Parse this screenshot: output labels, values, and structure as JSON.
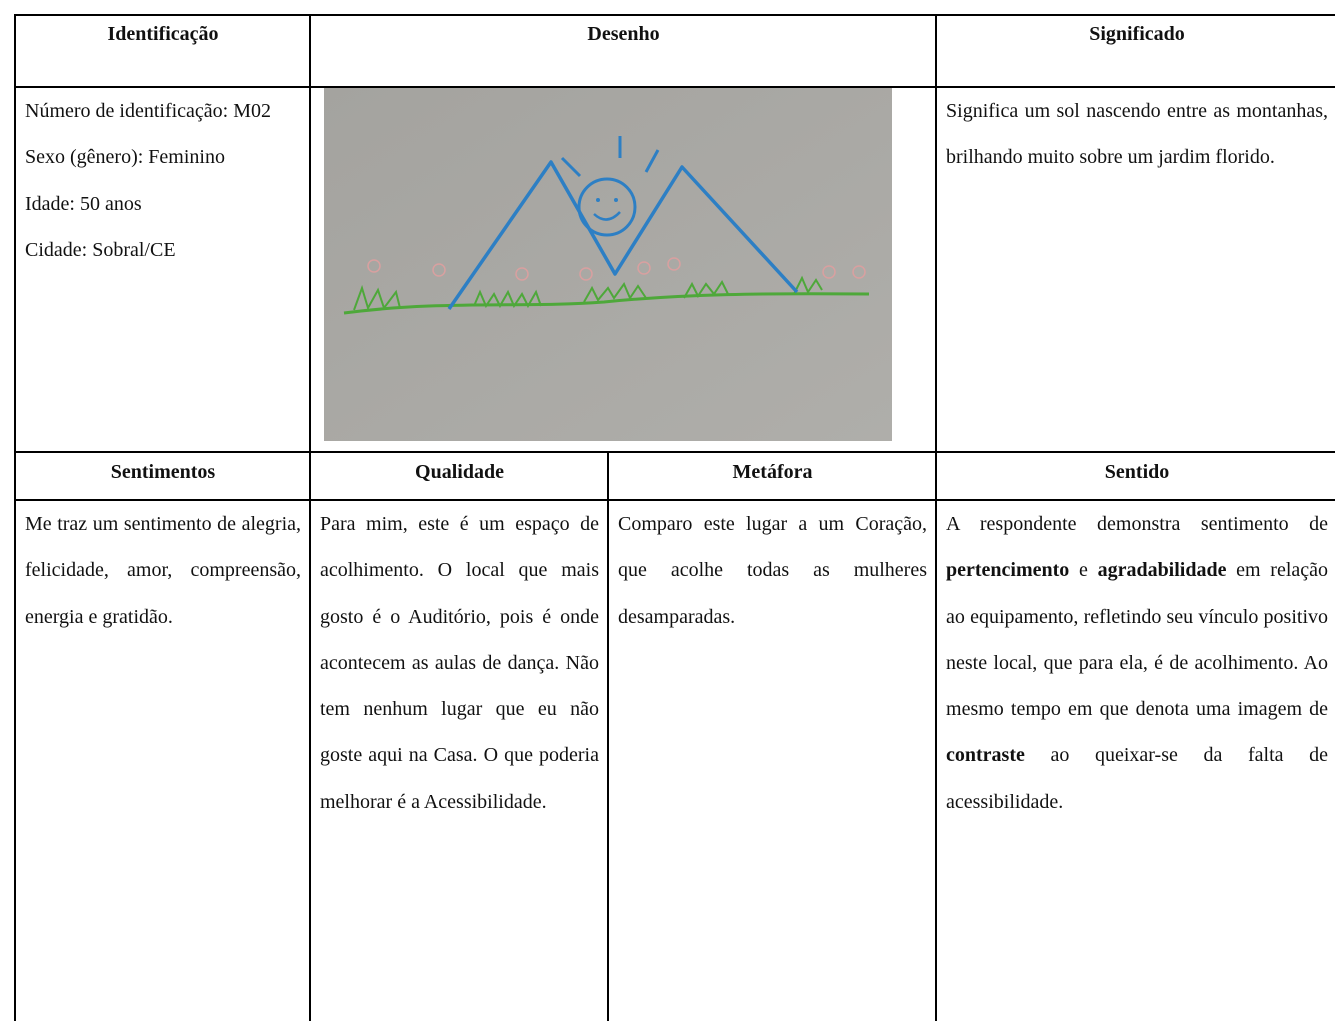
{
  "table": {
    "headers": [
      "Identificação",
      "Desenho",
      "Significado"
    ],
    "identificacao": [
      "Número de identificação: M02",
      "Sexo (gênero): Feminino",
      "Idade: 50 anos",
      "Cidade: Sobral/CE"
    ],
    "significado": "Significa um sol nascendo entre as montanhas, brilhando muito sobre um jardim florido.",
    "subheaders": [
      "Sentimentos",
      "Qualidade",
      "Metáfora",
      "Sentido"
    ],
    "sentimentos": "Me traz um sentimento de alegria, felicidade, amor, compreensão, energia e gratidão.",
    "qualidade": "Para mim, este é um espaço de acolhimento. O local que mais gosto é o Auditório, pois é onde acontecem as aulas de dança. Não tem nenhum lugar que eu não goste aqui na Casa. O que poderia melhorar é a Acessibilidade.",
    "metafora": "Comparo este lugar a um Coração, que acolhe todas as mulheres desamparadas.",
    "sentido": [
      "A respondente demonstra sentimento de ",
      "pertencimento",
      " e ",
      "agradabilidade",
      " em relação ao equipamento, refletindo seu vínculo positivo neste local, que para ela, é de acolhimento. Ao mesmo tempo em que denota uma imagem de ",
      "contraste",
      " ao queixar-se da falta de acessibilidade."
    ]
  }
}
